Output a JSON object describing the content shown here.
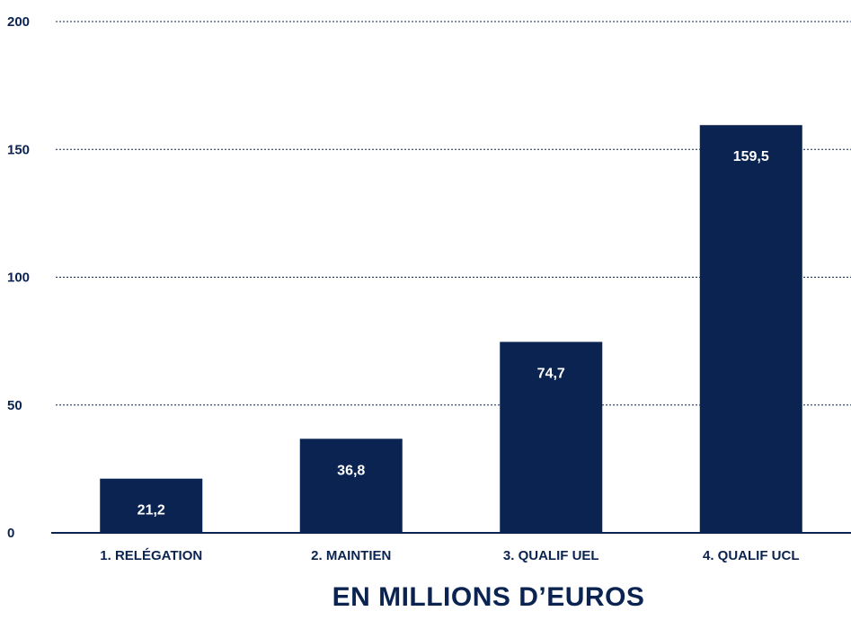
{
  "chart_data": {
    "type": "bar",
    "categories": [
      "1. RELÉGATION",
      "2. MAINTIEN",
      "3. QUALIF UEL",
      "4. QUALIF UCL"
    ],
    "values": [
      21.2,
      36.8,
      74.7,
      159.5
    ],
    "value_labels": [
      "21,2",
      "36,8",
      "74,7",
      "159,5"
    ],
    "ylim": [
      0,
      200
    ],
    "yticks": [
      0,
      50,
      100,
      150,
      200
    ],
    "grid": "horizontal dotted",
    "xlabel": "EN MILLIONS D’EUROS",
    "ylabel": ""
  },
  "colors": {
    "bar": "#0b2350",
    "text": "#0b2350",
    "bar_label": "#ffffff",
    "grid": "#0b2350"
  }
}
